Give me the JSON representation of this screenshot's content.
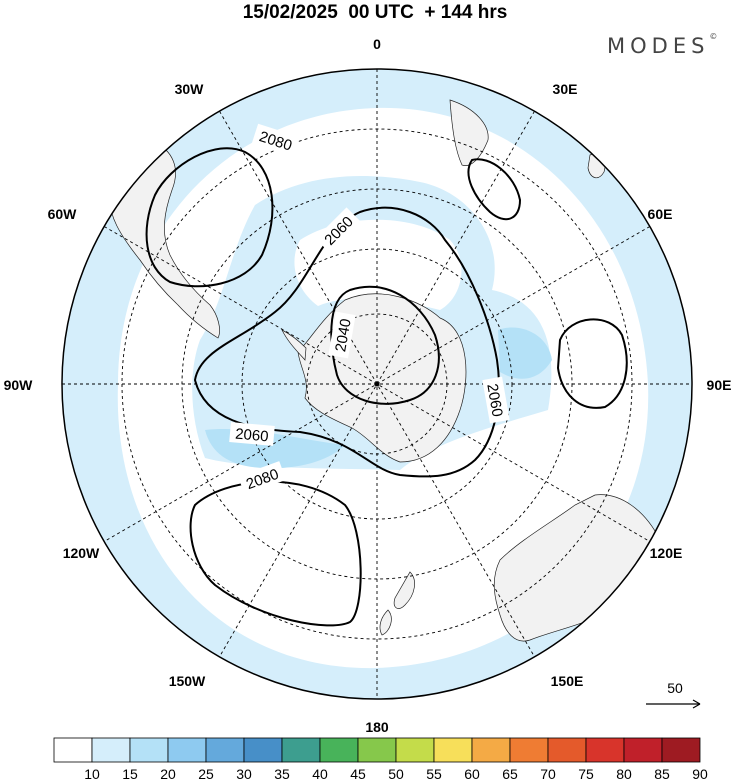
{
  "title": "15/02/2025  00 UTC  + 144 hrs",
  "brand": {
    "name": "MODES",
    "mark": "©"
  },
  "longitude_labels": {
    "lon_0": "0",
    "lon_30e": "30E",
    "lon_60e": "60E",
    "lon_90e": "90E",
    "lon_120e": "120E",
    "lon_150e": "150E",
    "lon_180": "180",
    "lon_150w": "150W",
    "lon_120w": "120W",
    "lon_90w": "90W",
    "lon_60w": "60W",
    "lon_30w": "30W"
  },
  "contour_labels": [
    "2080",
    "2060",
    "2040",
    "2060",
    "2060",
    "2080"
  ],
  "wind_reference": {
    "value": "50"
  },
  "colorbar": {
    "ticks": [
      "10",
      "15",
      "20",
      "25",
      "30",
      "35",
      "40",
      "45",
      "50",
      "55",
      "60",
      "65",
      "70",
      "75",
      "80",
      "85",
      "90"
    ],
    "colors": [
      "#ffffff",
      "#d5eefb",
      "#b4e1f7",
      "#8ecaf0",
      "#64a9dc",
      "#478fc8",
      "#3d9e8f",
      "#48b35a",
      "#86c84b",
      "#c4dc4a",
      "#f7df5a",
      "#f4aa45",
      "#ef7c33",
      "#e45a2b",
      "#d8342b",
      "#c0202a",
      "#9e1b22"
    ]
  },
  "colors": {
    "land": "#f2f2f2",
    "wind_light": "#d5eefb",
    "wind_mid": "#b4e1f7",
    "contour": "#000000"
  }
}
